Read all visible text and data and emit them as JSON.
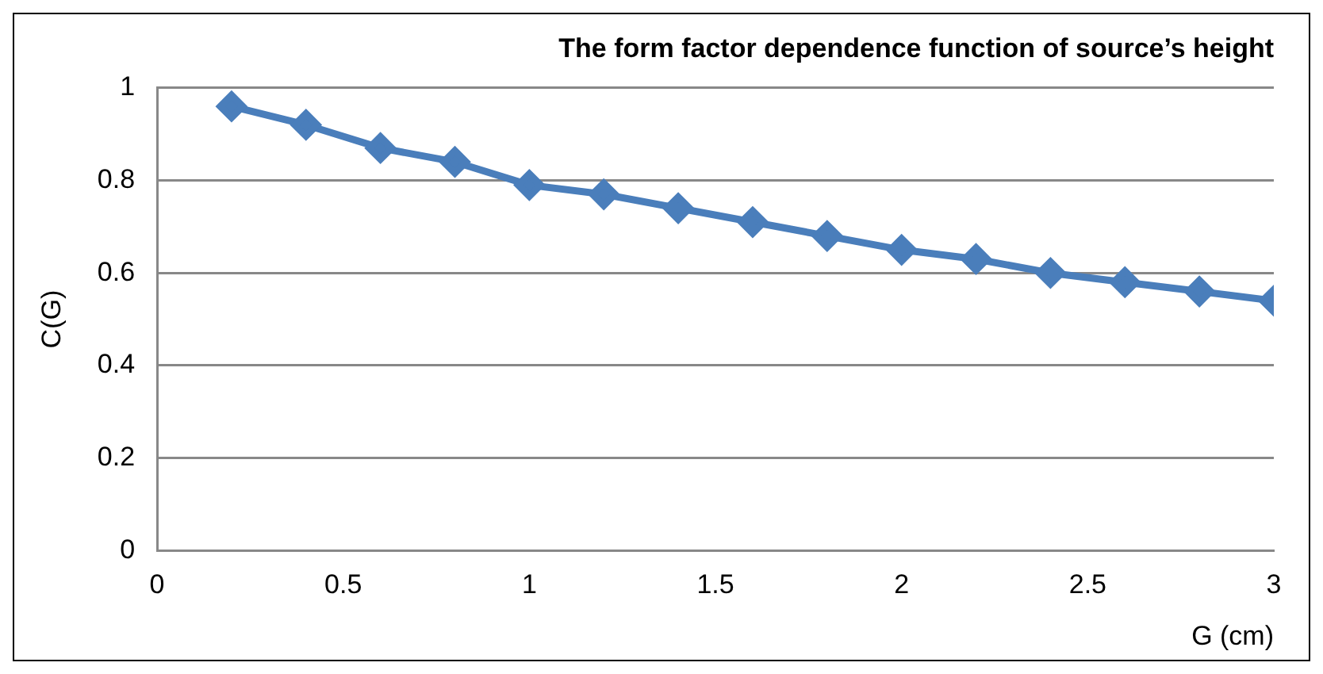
{
  "chart_data": {
    "type": "line",
    "title": "The form factor dependence function of source’s height",
    "xlabel": "G (cm)",
    "ylabel": "C(G)",
    "x": [
      0.2,
      0.4,
      0.6,
      0.8,
      1.0,
      1.2,
      1.4,
      1.6,
      1.8,
      2.0,
      2.2,
      2.4,
      2.6,
      2.8,
      3.0
    ],
    "series": [
      {
        "color": "#4a7ebb",
        "values": [
          0.96,
          0.92,
          0.87,
          0.84,
          0.79,
          0.77,
          0.74,
          0.71,
          0.68,
          0.65,
          0.63,
          0.6,
          0.58,
          0.56,
          0.54
        ]
      }
    ],
    "xlim": [
      0,
      3
    ],
    "xticks": [
      0,
      0.5,
      1,
      1.5,
      2,
      2.5,
      3
    ],
    "ylim": [
      0,
      1
    ],
    "yticks": [
      0,
      0.2,
      0.4,
      0.6,
      0.8,
      1
    ],
    "grid": "y",
    "legend": false,
    "marker": "diamond",
    "line_style": "solid"
  }
}
